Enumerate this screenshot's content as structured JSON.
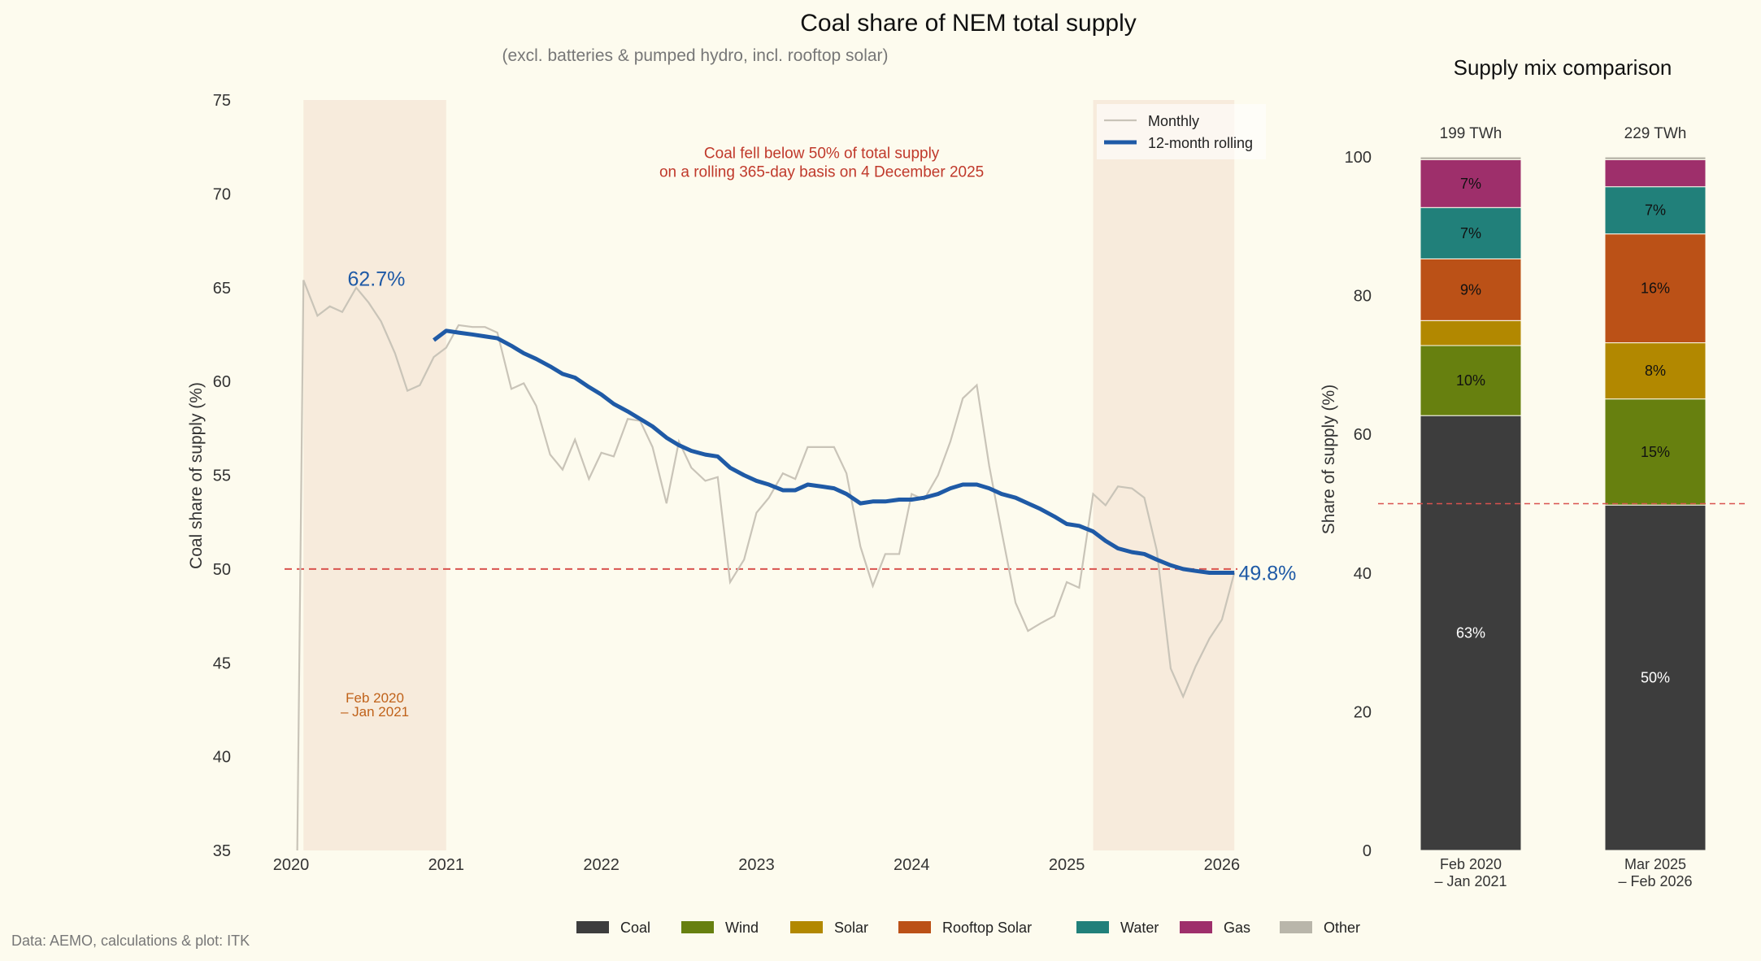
{
  "page": {
    "background": "#fdfbee",
    "title": "Coal share of NEM total supply",
    "subtitle": "(excl. batteries & pumped hydro, incl. rooftop solar)",
    "source": "Data: AEMO, calculations & plot: ITK"
  },
  "colors": {
    "monthly": "#c9c4b8",
    "rolling": "#1f5aa6",
    "threshold": "#d9534f",
    "shade": "#f7ebdc",
    "annotation": "#c0392b",
    "period": "#c0621a",
    "axis_text": "#333333"
  },
  "chart_data": [
    {
      "type": "line",
      "title": "Coal share of NEM total supply",
      "ylabel": "Coal share of supply (%)",
      "xlabel": "",
      "xlim": [
        2020.0,
        2026.1
      ],
      "ylim": [
        35,
        75
      ],
      "yticks": [
        35,
        40,
        45,
        50,
        55,
        60,
        65,
        70,
        75
      ],
      "xticks": [
        2020,
        2021,
        2022,
        2023,
        2024,
        2025,
        2026
      ],
      "xtick_labels": [
        "2020",
        "2021",
        "2022",
        "2023",
        "2024",
        "2025",
        "2026"
      ],
      "legend": {
        "position": "top-right",
        "entries": [
          "Monthly",
          "12-month rolling"
        ]
      },
      "threshold": 50,
      "shaded_periods": [
        {
          "x_start": 2020.08,
          "x_end": 2021.0,
          "label_line1": "Feb 2020",
          "label_line2": "– Jan 2021"
        },
        {
          "x_start": 2025.17,
          "x_end": 2026.08
        }
      ],
      "annotation": {
        "line1": "Coal fell below 50% of total supply",
        "line2": "on a rolling 365-day basis on 4 December 2025",
        "x": 2023.42,
        "y": 71.9
      },
      "start_label": {
        "text": "62.7%",
        "x": 2020.55,
        "y": 65.1
      },
      "end_label": {
        "text": "49.8%",
        "x": 2026.05,
        "y": 49.8
      },
      "series": [
        {
          "name": "Monthly",
          "x": [
            2020.04,
            2020.08,
            2020.17,
            2020.25,
            2020.33,
            2020.42,
            2020.5,
            2020.58,
            2020.67,
            2020.75,
            2020.83,
            2020.92,
            2021.0,
            2021.08,
            2021.17,
            2021.25,
            2021.33,
            2021.42,
            2021.5,
            2021.58,
            2021.67,
            2021.75,
            2021.83,
            2021.92,
            2022.0,
            2022.08,
            2022.17,
            2022.25,
            2022.33,
            2022.42,
            2022.5,
            2022.58,
            2022.67,
            2022.75,
            2022.83,
            2022.92,
            2023.0,
            2023.08,
            2023.17,
            2023.25,
            2023.33,
            2023.42,
            2023.5,
            2023.58,
            2023.67,
            2023.75,
            2023.83,
            2023.92,
            2024.0,
            2024.08,
            2024.17,
            2024.25,
            2024.33,
            2024.42,
            2024.5,
            2024.58,
            2024.67,
            2024.75,
            2024.83,
            2024.92,
            2025.0,
            2025.08,
            2025.17,
            2025.25,
            2025.33,
            2025.42,
            2025.5,
            2025.58,
            2025.67,
            2025.75,
            2025.83,
            2025.92,
            2026.0,
            2026.08
          ],
          "values": [
            35.0,
            65.4,
            63.5,
            64.0,
            63.7,
            65.0,
            64.2,
            63.2,
            61.5,
            59.5,
            59.8,
            61.3,
            61.8,
            63.0,
            62.9,
            62.9,
            62.6,
            59.6,
            59.9,
            58.7,
            56.1,
            55.3,
            56.9,
            54.8,
            56.2,
            56.0,
            58.0,
            57.9,
            56.5,
            53.5,
            56.8,
            55.4,
            54.7,
            54.9,
            49.3,
            50.5,
            53.0,
            53.8,
            55.1,
            54.8,
            56.5,
            56.5,
            56.5,
            55.1,
            51.2,
            49.1,
            50.8,
            50.8,
            54.0,
            53.7,
            55.0,
            56.8,
            59.1,
            59.8,
            55.5,
            52.0,
            48.2,
            46.7,
            47.1,
            47.5,
            49.3,
            49.0,
            54.0,
            53.4,
            54.4,
            54.3,
            53.8,
            51.0,
            44.7,
            43.2,
            44.8,
            46.3,
            47.3,
            49.8
          ]
        },
        {
          "name": "12-month rolling",
          "x": [
            2020.92,
            2021.0,
            2021.08,
            2021.17,
            2021.25,
            2021.33,
            2021.42,
            2021.5,
            2021.58,
            2021.67,
            2021.75,
            2021.83,
            2021.92,
            2022.0,
            2022.08,
            2022.17,
            2022.25,
            2022.33,
            2022.42,
            2022.5,
            2022.58,
            2022.67,
            2022.75,
            2022.83,
            2022.92,
            2023.0,
            2023.08,
            2023.17,
            2023.25,
            2023.33,
            2023.42,
            2023.5,
            2023.58,
            2023.67,
            2023.75,
            2023.83,
            2023.92,
            2024.0,
            2024.08,
            2024.17,
            2024.25,
            2024.33,
            2024.42,
            2024.5,
            2024.58,
            2024.67,
            2024.75,
            2024.83,
            2024.92,
            2025.0,
            2025.08,
            2025.17,
            2025.25,
            2025.33,
            2025.42,
            2025.5,
            2025.58,
            2025.67,
            2025.75,
            2025.83,
            2025.92,
            2026.0,
            2026.08
          ],
          "values": [
            62.2,
            62.7,
            62.6,
            62.5,
            62.4,
            62.3,
            61.9,
            61.5,
            61.2,
            60.8,
            60.4,
            60.2,
            59.7,
            59.3,
            58.8,
            58.4,
            58.0,
            57.6,
            57.0,
            56.6,
            56.3,
            56.1,
            56.0,
            55.4,
            55.0,
            54.7,
            54.5,
            54.2,
            54.2,
            54.5,
            54.4,
            54.3,
            54.0,
            53.5,
            53.6,
            53.6,
            53.7,
            53.7,
            53.8,
            54.0,
            54.3,
            54.5,
            54.5,
            54.3,
            54.0,
            53.8,
            53.5,
            53.2,
            52.8,
            52.4,
            52.3,
            52.0,
            51.5,
            51.1,
            50.9,
            50.8,
            50.5,
            50.2,
            50.0,
            49.9,
            49.8,
            49.8,
            49.8
          ]
        }
      ]
    },
    {
      "type": "bar",
      "title": "Supply mix comparison",
      "ylabel": "Share of supply (%)",
      "xlabel": "",
      "ylim": [
        0,
        100
      ],
      "yticks": [
        0,
        20,
        40,
        60,
        80,
        100
      ],
      "threshold": 50,
      "categories": [
        {
          "line1": "Feb 2020",
          "line2": "– Jan 2021"
        },
        {
          "line1": "Mar 2025",
          "line2": "– Feb 2026"
        }
      ],
      "totals": [
        "199 TWh",
        "229 TWh"
      ],
      "legend": {
        "position": "bottom"
      },
      "series": [
        {
          "name": "Coal",
          "color": "#3d3d3d",
          "text_color": "#ffffff",
          "values": [
            62.7,
            49.8
          ],
          "labels": [
            "63%",
            "50%"
          ]
        },
        {
          "name": "Wind",
          "color": "#67800f",
          "text_color": "#111111",
          "values": [
            10.1,
            15.3
          ],
          "labels": [
            "10%",
            "15%"
          ]
        },
        {
          "name": "Solar",
          "color": "#b28800",
          "text_color": "#111111",
          "values": [
            3.6,
            8.1
          ],
          "labels": [
            "",
            "8%"
          ]
        },
        {
          "name": "Rooftop Solar",
          "color": "#bb5117",
          "text_color": "#111111",
          "values": [
            8.9,
            15.7
          ],
          "labels": [
            "9%",
            "16%"
          ]
        },
        {
          "name": "Water",
          "color": "#21807a",
          "text_color": "#111111",
          "values": [
            7.4,
            6.8
          ],
          "labels": [
            "7%",
            "7%"
          ]
        },
        {
          "name": "Gas",
          "color": "#9e2f6b",
          "text_color": "#111111",
          "values": [
            6.9,
            3.9
          ],
          "labels": [
            "7%",
            ""
          ]
        },
        {
          "name": "Other",
          "color": "#b9b6aa",
          "text_color": "#111111",
          "values": [
            0.4,
            0.4
          ],
          "labels": [
            "",
            ""
          ]
        }
      ]
    }
  ]
}
